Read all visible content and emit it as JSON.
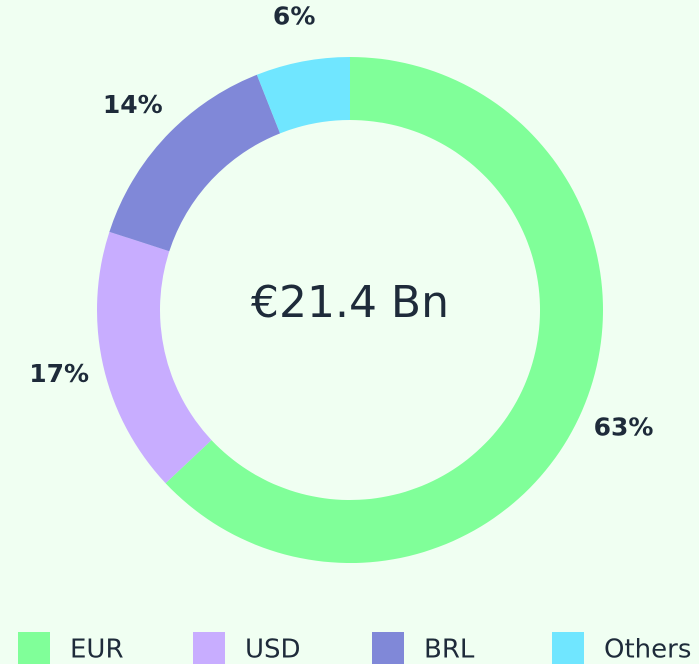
{
  "chart_data": {
    "type": "donut",
    "center_label": "€21.4 Bn",
    "categories": [
      "EUR",
      "USD",
      "BRL",
      "Others"
    ],
    "values": [
      63,
      17,
      14,
      6
    ],
    "value_labels": [
      "63%",
      "17%",
      "14%",
      "6%"
    ],
    "colors": [
      "#80ff99",
      "#c8adff",
      "#8088d8",
      "#70e6ff"
    ]
  }
}
